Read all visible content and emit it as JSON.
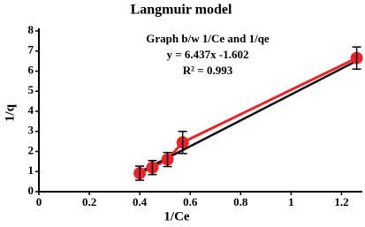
{
  "chart_data": {
    "type": "scatter",
    "title": "Langmuir model",
    "x_label": "1/Ce",
    "y_label": "1/q",
    "annotations": [
      "Graph b/w 1/Ce and 1/qe",
      "y = 6.437x -1.602",
      "R² = 0.993"
    ],
    "trendline": {
      "slope": 6.437,
      "intercept": -1.602,
      "color": "#111111"
    },
    "x": [
      0.4,
      0.45,
      0.51,
      0.57,
      1.26
    ],
    "values": [
      0.92,
      1.2,
      1.6,
      2.45,
      6.65
    ],
    "errors": [
      0.35,
      0.35,
      0.35,
      0.55,
      0.55
    ],
    "color": "#e8262a",
    "xlim": [
      0,
      1.3
    ],
    "xticks": [
      0,
      0.2,
      0.4,
      0.6,
      0.8,
      1,
      1.2
    ],
    "ylim": [
      0,
      8
    ],
    "yticks": [
      0,
      1,
      2,
      3,
      4,
      5,
      6,
      7,
      8
    ]
  }
}
